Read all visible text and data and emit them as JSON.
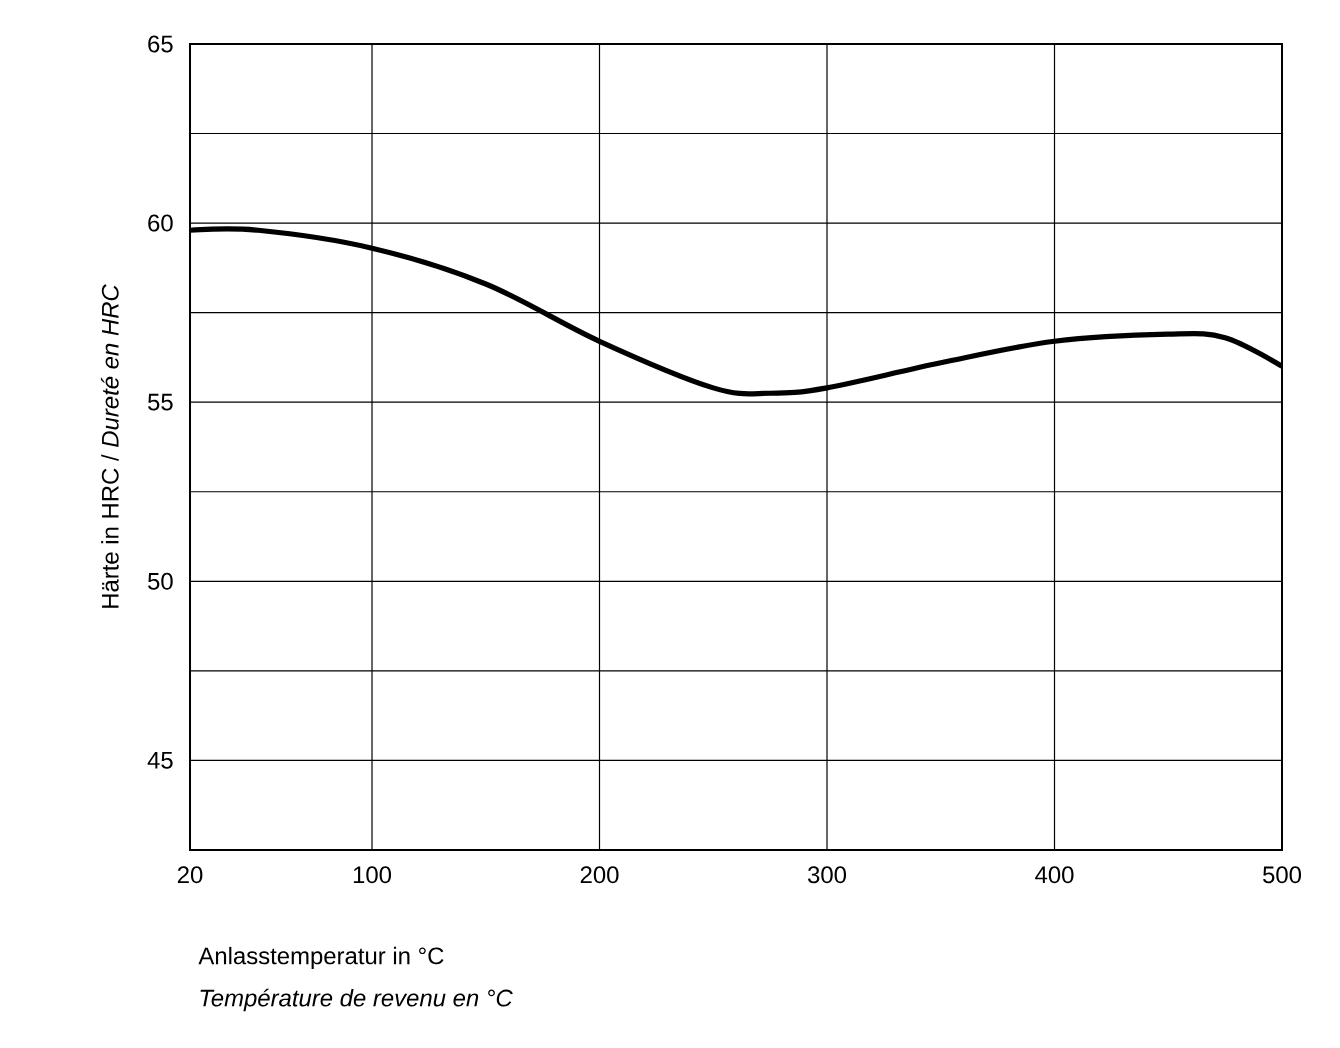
{
  "chart_data": {
    "type": "line",
    "xlabel": "Anlasstemperatur in °C",
    "ylabel": "Härte in HRC / *Dureté en HRC*",
    "annotations": [
      "Température de revenu en °C"
    ],
    "x": [
      20,
      50,
      100,
      150,
      200,
      250,
      275,
      300,
      350,
      400,
      450,
      475,
      500
    ],
    "series": [
      {
        "color": "#000000",
        "values": [
          59.8,
          59.8,
          59.3,
          58.3,
          56.7,
          55.4,
          55.25,
          55.4,
          56.1,
          56.7,
          56.9,
          56.8,
          56.0
        ]
      }
    ],
    "xlim": [
      20,
      500
    ],
    "xticks": [
      20,
      100,
      200,
      300,
      400,
      500
    ],
    "ylim": [
      42.5,
      65
    ],
    "yticks": [
      {
        "value": 42.5,
        "label": null
      },
      45,
      {
        "value": 47.5,
        "label": null
      },
      50,
      {
        "value": 52.5,
        "label": null
      },
      55,
      {
        "value": 57.5,
        "label": null
      },
      60,
      {
        "value": 62.5,
        "label": null
      },
      65
    ],
    "grid": true,
    "marker": "none",
    "line_style": "solid"
  }
}
